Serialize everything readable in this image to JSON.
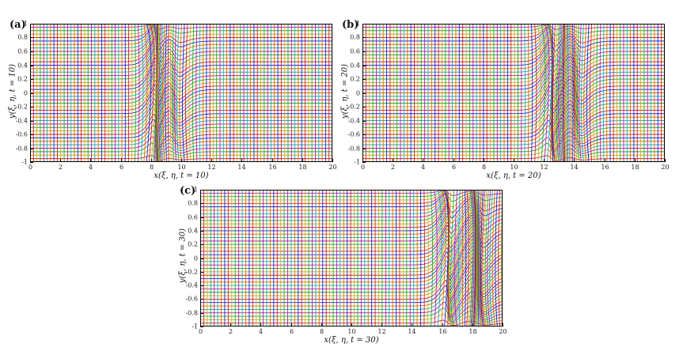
{
  "figure": {
    "background": "#ffffff",
    "description": "Adaptive moving mesh trajectories at three times"
  },
  "style": {
    "palette": [
      "#2222cc",
      "#cc2222",
      "#ccaa22",
      "#22aa22",
      "#aa22aa",
      "#22aaaa",
      "#dd6600"
    ],
    "axis_color": "#000000",
    "tick_label_color": "#222222",
    "label_color": "#111111"
  },
  "chart_data": [
    {
      "type": "mesh",
      "panel_label": "(a)",
      "xlabel": "x(ξ, η, t = 10)",
      "ylabel": "y(ξ, η, t = 10)",
      "xlim": [
        0,
        20
      ],
      "ylim": [
        -1,
        1
      ],
      "xticks": [
        0,
        2,
        4,
        6,
        8,
        10,
        12,
        14,
        16,
        18,
        20
      ],
      "yticks": [
        -1,
        -0.8,
        -0.6,
        -0.4,
        -0.2,
        0,
        0.2,
        0.4,
        0.6,
        0.8,
        1
      ],
      "waves": [
        {
          "center": 8.3,
          "width": 0.5,
          "amp": 1.0
        },
        {
          "center": 9.5,
          "width": 0.8,
          "amp": 0.45
        }
      ],
      "n_xi": 100,
      "n_eta": 40
    },
    {
      "type": "mesh",
      "panel_label": "(b)",
      "xlabel": "x(ξ, η, t = 20)",
      "ylabel": "y(ξ, η, t = 20)",
      "xlim": [
        0,
        20
      ],
      "ylim": [
        -1,
        1
      ],
      "xticks": [
        0,
        2,
        4,
        6,
        8,
        10,
        12,
        14,
        16,
        18,
        20
      ],
      "yticks": [
        -1,
        -0.8,
        -0.6,
        -0.4,
        -0.2,
        0,
        0.2,
        0.4,
        0.6,
        0.8,
        1
      ],
      "waves": [
        {
          "center": 12.5,
          "width": 0.55,
          "amp": 1.0
        },
        {
          "center": 14.1,
          "width": 0.8,
          "amp": 0.5
        }
      ],
      "n_xi": 100,
      "n_eta": 40
    },
    {
      "type": "mesh",
      "panel_label": "(c)",
      "xlabel": "x(ξ, η, t = 30)",
      "ylabel": "y(ξ, η, t = 30)",
      "xlim": [
        0,
        20
      ],
      "ylim": [
        -1,
        1
      ],
      "xticks": [
        0,
        2,
        4,
        6,
        8,
        10,
        12,
        14,
        16,
        18,
        20
      ],
      "yticks": [
        -1,
        -0.8,
        -0.6,
        -0.4,
        -0.2,
        0,
        0.2,
        0.4,
        0.6,
        0.8,
        1
      ],
      "waves": [
        {
          "center": 16.4,
          "width": 0.55,
          "amp": 1.0
        },
        {
          "center": 18.4,
          "width": 0.8,
          "amp": 0.7
        }
      ],
      "n_xi": 100,
      "n_eta": 40
    }
  ]
}
